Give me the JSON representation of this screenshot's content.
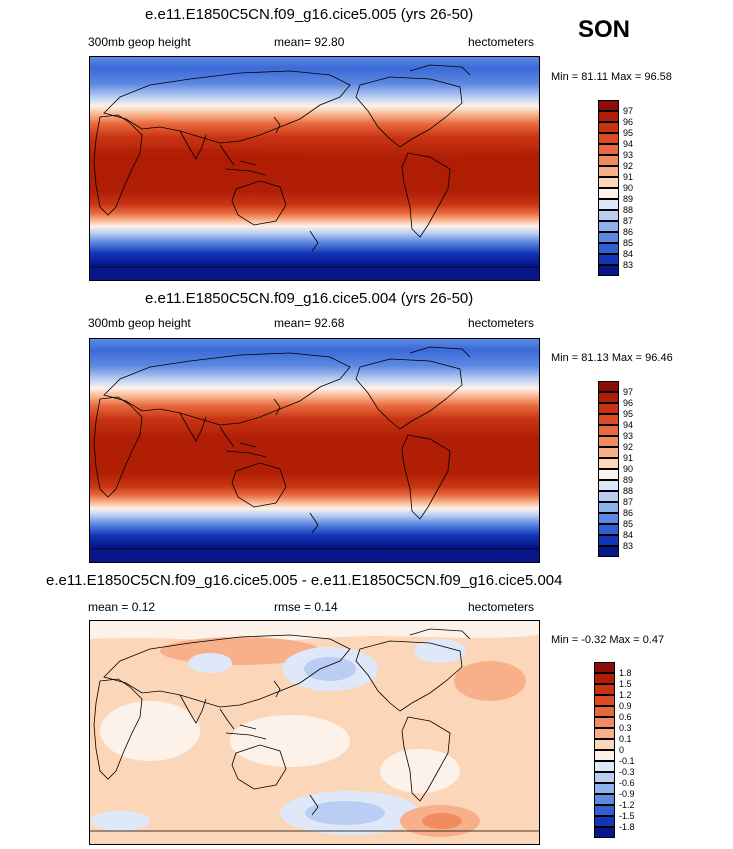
{
  "season": "SON",
  "panels": [
    {
      "title": "e.e11.E1850C5CN.f09_g16.cice5.005 (yrs 26-50)",
      "left_label": "300mb geop height",
      "center_label": "mean=  92.80",
      "right_label": "hectometers",
      "minmax": "Min =  81.11 Max =  96.58",
      "colorbar": {
        "labels": [
          "97",
          "96",
          "95",
          "94",
          "93",
          "92",
          "91",
          "90",
          "89",
          "88",
          "87",
          "86",
          "85",
          "84",
          "83"
        ],
        "colors": [
          "#8c0c0c",
          "#b01e06",
          "#c83412",
          "#dc4c22",
          "#e8693e",
          "#f18a5e",
          "#f8b08a",
          "#fcd6b8",
          "#fdf2ea",
          "#dfe8f8",
          "#b9cef2",
          "#8fb1ec",
          "#5e89e1",
          "#2f5fd2",
          "#1136b8",
          "#08168a"
        ]
      }
    },
    {
      "title": "e.e11.E1850C5CN.f09_g16.cice5.004 (yrs 26-50)",
      "left_label": "300mb geop height",
      "center_label": "mean=  92.68",
      "right_label": "hectometers",
      "minmax": "Min =  81.13 Max =  96.46",
      "colorbar": {
        "labels": [
          "97",
          "96",
          "95",
          "94",
          "93",
          "92",
          "91",
          "90",
          "89",
          "88",
          "87",
          "86",
          "85",
          "84",
          "83"
        ],
        "colors": [
          "#8c0c0c",
          "#b01e06",
          "#c83412",
          "#dc4c22",
          "#e8693e",
          "#f18a5e",
          "#f8b08a",
          "#fcd6b8",
          "#fdf2ea",
          "#dfe8f8",
          "#b9cef2",
          "#8fb1ec",
          "#5e89e1",
          "#2f5fd2",
          "#1136b8",
          "#08168a"
        ]
      }
    },
    {
      "title": "e.e11.E1850C5CN.f09_g16.cice5.005 - e.e11.E1850C5CN.f09_g16.cice5.004",
      "left_label": "mean =   0.12",
      "center_label": "rmse =   0.14",
      "right_label": "hectometers",
      "minmax": "Min =  -0.32 Max =   0.47",
      "colorbar": {
        "labels": [
          "1.8",
          "1.5",
          "1.2",
          "0.9",
          "0.6",
          "0.3",
          "0.1",
          "0",
          "-0.1",
          "-0.3",
          "-0.6",
          "-0.9",
          "-1.2",
          "-1.5",
          "-1.8"
        ],
        "colors": [
          "#8c0c0c",
          "#b01e06",
          "#c83412",
          "#dc4c22",
          "#e8693e",
          "#f18a5e",
          "#f8b08a",
          "#fcd6b8",
          "#fdf2ea",
          "#dfe8f8",
          "#b9cef2",
          "#8fb1ec",
          "#5e89e1",
          "#2f5fd2",
          "#1136b8",
          "#08168a"
        ]
      }
    }
  ]
}
